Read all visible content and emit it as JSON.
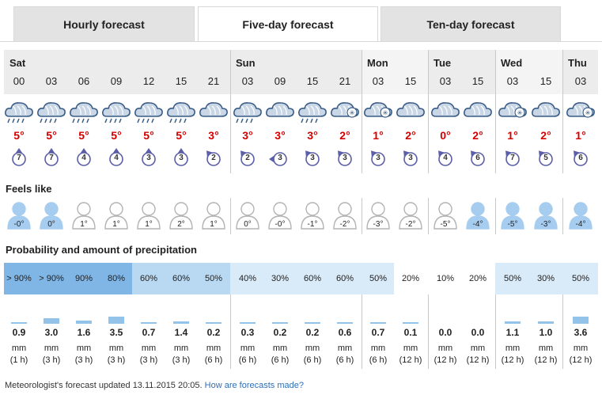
{
  "tabs": [
    {
      "label": "Hourly forecast",
      "active": false
    },
    {
      "label": "Five-day forecast",
      "active": true
    },
    {
      "label": "Ten-day forecast",
      "active": false
    }
  ],
  "days": [
    {
      "name": "Sat",
      "start": 0,
      "count": 7
    },
    {
      "name": "Sun",
      "start": 7,
      "count": 4
    },
    {
      "name": "Mon",
      "start": 11,
      "count": 2
    },
    {
      "name": "Tue",
      "start": 13,
      "count": 2
    },
    {
      "name": "Wed",
      "start": 15,
      "count": 2
    },
    {
      "name": "Thu",
      "start": 17,
      "count": 1
    }
  ],
  "slots": [
    {
      "hour": "00",
      "icon": "rain-cloud-icon",
      "temp": "5°",
      "wind": "7",
      "wind_dir": "up",
      "feels": "-0°",
      "feels_cold": true,
      "prob": "> 90%",
      "prob_level": 3,
      "amount": "0.9",
      "unit": "mm",
      "period": "(1 h)"
    },
    {
      "hour": "03",
      "icon": "rain-cloud-icon",
      "temp": "5°",
      "wind": "7",
      "wind_dir": "up",
      "feels": "0°",
      "feels_cold": true,
      "prob": "> 90%",
      "prob_level": 3,
      "amount": "3.0",
      "unit": "mm",
      "period": "(3 h)"
    },
    {
      "hour": "06",
      "icon": "rain-cloud-icon",
      "temp": "5°",
      "wind": "4",
      "wind_dir": "up",
      "feels": "1°",
      "feels_cold": false,
      "prob": "90%",
      "prob_level": 3,
      "amount": "1.6",
      "unit": "mm",
      "period": "(3 h)"
    },
    {
      "hour": "09",
      "icon": "rain-cloud-icon",
      "temp": "5°",
      "wind": "4",
      "wind_dir": "up",
      "feels": "1°",
      "feels_cold": false,
      "prob": "80%",
      "prob_level": 3,
      "amount": "3.5",
      "unit": "mm",
      "period": "(3 h)"
    },
    {
      "hour": "12",
      "icon": "rain-cloud-icon",
      "temp": "5°",
      "wind": "3",
      "wind_dir": "up",
      "feels": "1°",
      "feels_cold": false,
      "prob": "60%",
      "prob_level": 2,
      "amount": "0.7",
      "unit": "mm",
      "period": "(3 h)"
    },
    {
      "hour": "15",
      "icon": "rain-cloud-icon",
      "temp": "5°",
      "wind": "3",
      "wind_dir": "up",
      "feels": "2°",
      "feels_cold": false,
      "prob": "60%",
      "prob_level": 2,
      "amount": "1.4",
      "unit": "mm",
      "period": "(3 h)"
    },
    {
      "hour": "21",
      "icon": "cloud-icon",
      "temp": "3°",
      "wind": "2",
      "wind_dir": "upleft",
      "feels": "1°",
      "feels_cold": false,
      "prob": "50%",
      "prob_level": 2,
      "amount": "0.2",
      "unit": "mm",
      "period": "(6 h)"
    },
    {
      "hour": "03",
      "icon": "rain-cloud-icon",
      "temp": "3°",
      "wind": "2",
      "wind_dir": "upleft",
      "feels": "0°",
      "feels_cold": false,
      "prob": "40%",
      "prob_level": 1,
      "amount": "0.3",
      "unit": "mm",
      "period": "(6 h)"
    },
    {
      "hour": "09",
      "icon": "cloud-icon",
      "temp": "3°",
      "wind": "3",
      "wind_dir": "left",
      "feels": "-0°",
      "feels_cold": false,
      "prob": "30%",
      "prob_level": 1,
      "amount": "0.2",
      "unit": "mm",
      "period": "(6 h)"
    },
    {
      "hour": "15",
      "icon": "rain-cloud-icon",
      "temp": "3°",
      "wind": "3",
      "wind_dir": "upleft",
      "feels": "-1°",
      "feels_cold": false,
      "prob": "60%",
      "prob_level": 1,
      "amount": "0.2",
      "unit": "mm",
      "period": "(6 h)"
    },
    {
      "hour": "21",
      "icon": "snow-cloud-icon",
      "temp": "2°",
      "wind": "3",
      "wind_dir": "upleft",
      "feels": "-2°",
      "feels_cold": false,
      "prob": "60%",
      "prob_level": 1,
      "amount": "0.6",
      "unit": "mm",
      "period": "(6 h)"
    },
    {
      "hour": "03",
      "icon": "snow-cloud-icon",
      "temp": "1°",
      "wind": "3",
      "wind_dir": "upleft",
      "feels": "-3°",
      "feels_cold": false,
      "prob": "50%",
      "prob_level": 1,
      "amount": "0.7",
      "unit": "mm",
      "period": "(6 h)"
    },
    {
      "hour": "15",
      "icon": "cloud-icon",
      "temp": "2°",
      "wind": "3",
      "wind_dir": "upleft",
      "feels": "-2°",
      "feels_cold": false,
      "prob": "20%",
      "prob_level": 0,
      "amount": "0.1",
      "unit": "mm",
      "period": "(12 h)"
    },
    {
      "hour": "03",
      "icon": "cloud-icon",
      "temp": "0°",
      "wind": "4",
      "wind_dir": "upleft",
      "feels": "-5°",
      "feels_cold": false,
      "prob": "10%",
      "prob_level": 0,
      "amount": "0.0",
      "unit": "mm",
      "period": "(12 h)"
    },
    {
      "hour": "15",
      "icon": "cloud-icon",
      "temp": "2°",
      "wind": "6",
      "wind_dir": "upleft",
      "feels": "-4°",
      "feels_cold": true,
      "prob": "20%",
      "prob_level": 0,
      "amount": "0.0",
      "unit": "mm",
      "period": "(12 h)"
    },
    {
      "hour": "03",
      "icon": "snow-cloud-icon",
      "temp": "1°",
      "wind": "7",
      "wind_dir": "upleft",
      "feels": "-5°",
      "feels_cold": true,
      "prob": "50%",
      "prob_level": 1,
      "amount": "1.1",
      "unit": "mm",
      "period": "(12 h)"
    },
    {
      "hour": "15",
      "icon": "cloud-icon",
      "temp": "2°",
      "wind": "5",
      "wind_dir": "upleft",
      "feels": "-3°",
      "feels_cold": true,
      "prob": "30%",
      "prob_level": 1,
      "amount": "1.0",
      "unit": "mm",
      "period": "(12 h)"
    },
    {
      "hour": "03",
      "icon": "snow-cloud-icon",
      "temp": "1°",
      "wind": "6",
      "wind_dir": "upleft",
      "feels": "-4°",
      "feels_cold": true,
      "prob": "50%",
      "prob_level": 1,
      "amount": "3.6",
      "unit": "mm",
      "period": "(12 h)"
    }
  ],
  "sections": {
    "feels_like": "Feels like",
    "precipitation": "Probability and amount of precipitation"
  },
  "footer": {
    "text": "Meteorologist's forecast updated 13.11.2015 20:05.",
    "link": "How are forecasts made?"
  },
  "colors": {
    "temp": "#d40000",
    "wind": "#5b5fa8",
    "prob_high": "#7fb6e6",
    "prob_mid": "#b9d9f3",
    "prob_low": "#d9eaf8",
    "bar": "#94c3ea",
    "cold_person": "#a6cdef"
  }
}
